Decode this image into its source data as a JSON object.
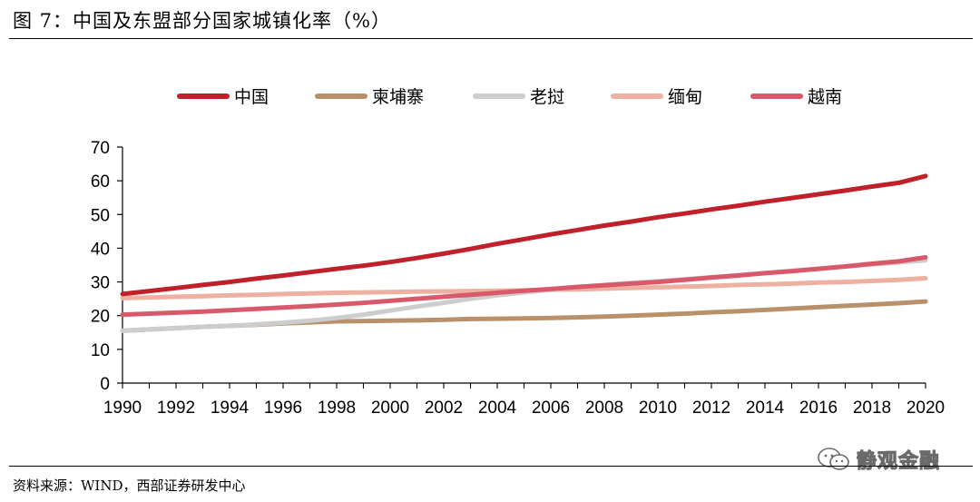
{
  "title": "图 7：中国及东盟部分国家城镇化率（%）",
  "source": "资料来源：WIND，西部证券研发中心",
  "watermark": {
    "text": "静观金融",
    "icon": "wechat-icon"
  },
  "colors": {
    "中国": "#c0202a",
    "柬埔寨": "#b8916a",
    "老挝": "#cdcdcd",
    "缅甸": "#eeb0a0",
    "越南": "#d85a6a"
  },
  "chart_data": {
    "type": "line",
    "x": [
      1990,
      1991,
      1992,
      1993,
      1994,
      1995,
      1996,
      1997,
      1998,
      1999,
      2000,
      2001,
      2002,
      2003,
      2004,
      2005,
      2006,
      2007,
      2008,
      2009,
      2010,
      2011,
      2012,
      2013,
      2014,
      2015,
      2016,
      2017,
      2018,
      2019,
      2020
    ],
    "xticks": [
      1990,
      1992,
      1994,
      1996,
      1998,
      2000,
      2002,
      2004,
      2006,
      2008,
      2010,
      2012,
      2014,
      2016,
      2018,
      2020
    ],
    "ylim": [
      0,
      70
    ],
    "yticks": [
      0,
      10,
      20,
      30,
      40,
      50,
      60,
      70
    ],
    "legend_position": "top",
    "series": [
      {
        "name": "中国",
        "values": [
          26.4,
          27.3,
          28.2,
          29.1,
          30.0,
          31.0,
          31.9,
          32.9,
          33.9,
          34.8,
          35.9,
          37.1,
          38.4,
          39.8,
          41.3,
          42.7,
          44.1,
          45.4,
          46.7,
          47.9,
          49.2,
          50.3,
          51.5,
          52.6,
          53.8,
          54.9,
          56.0,
          57.1,
          58.3,
          59.4,
          61.4
        ]
      },
      {
        "name": "柬埔寨",
        "values": [
          15.5,
          15.9,
          16.3,
          16.7,
          17.0,
          17.3,
          17.7,
          18.0,
          18.3,
          18.4,
          18.5,
          18.6,
          18.8,
          19.0,
          19.1,
          19.2,
          19.3,
          19.5,
          19.7,
          20.0,
          20.3,
          20.6,
          21.0,
          21.3,
          21.7,
          22.1,
          22.5,
          22.9,
          23.3,
          23.7,
          24.2
        ]
      },
      {
        "name": "老挝",
        "values": [
          15.5,
          15.9,
          16.3,
          16.7,
          17.0,
          17.4,
          17.9,
          18.5,
          19.3,
          20.3,
          21.5,
          22.7,
          23.8,
          25.0,
          26.0,
          26.9,
          27.7,
          28.5,
          29.1,
          29.7,
          30.2,
          30.8,
          31.4,
          32.0,
          32.6,
          33.3,
          33.9,
          34.6,
          35.2,
          35.8,
          36.4
        ]
      },
      {
        "name": "缅甸",
        "values": [
          25.2,
          25.4,
          25.6,
          25.8,
          26.0,
          26.2,
          26.4,
          26.6,
          26.8,
          26.9,
          27.0,
          27.1,
          27.2,
          27.3,
          27.4,
          27.5,
          27.7,
          27.8,
          28.0,
          28.2,
          28.4,
          28.6,
          28.8,
          29.1,
          29.3,
          29.5,
          29.8,
          30.0,
          30.3,
          30.6,
          31.1
        ]
      },
      {
        "name": "越南",
        "values": [
          20.3,
          20.6,
          20.9,
          21.2,
          21.6,
          22.0,
          22.4,
          22.8,
          23.3,
          23.8,
          24.4,
          25.0,
          25.6,
          26.2,
          26.8,
          27.4,
          27.9,
          28.5,
          29.0,
          29.5,
          30.0,
          30.6,
          31.3,
          31.9,
          32.6,
          33.2,
          33.9,
          34.6,
          35.4,
          36.1,
          37.3
        ]
      }
    ]
  }
}
